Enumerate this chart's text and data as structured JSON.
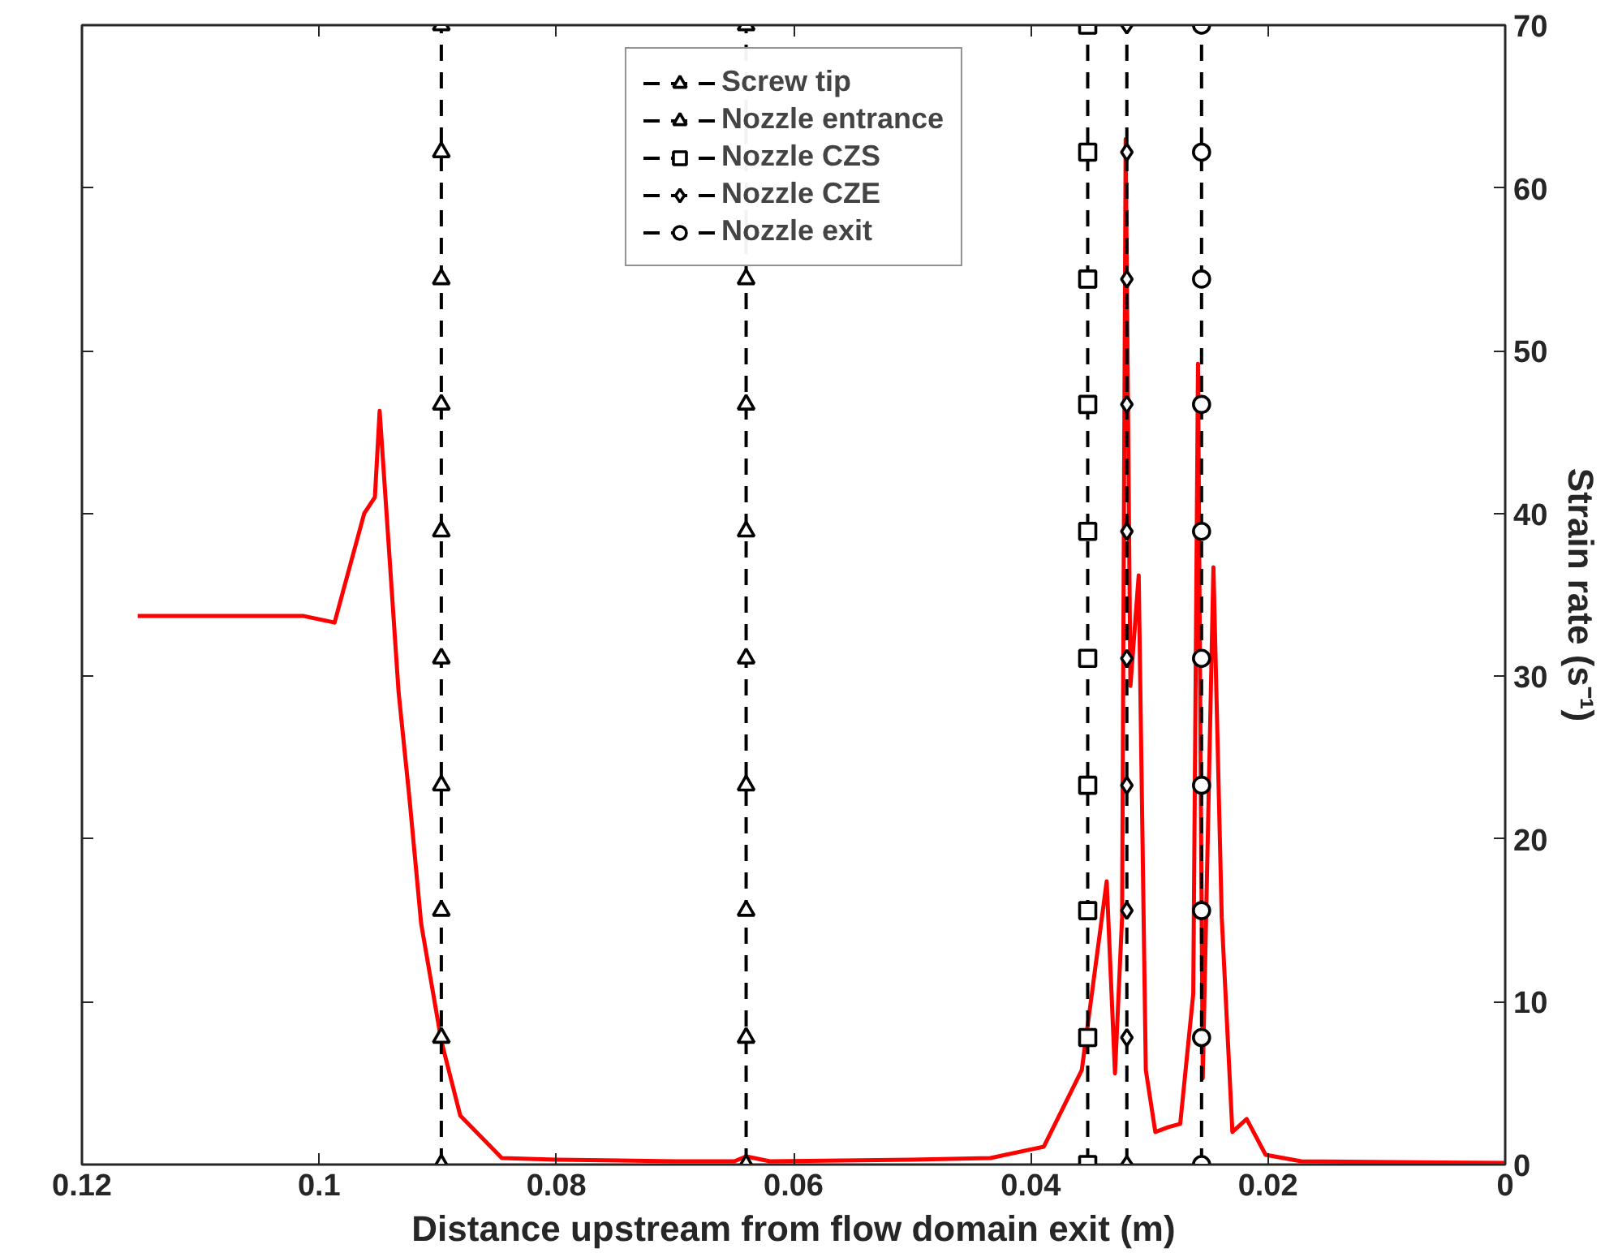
{
  "chart_data": {
    "type": "line",
    "xlabel": "Distance upstream from flow domain exit (m)",
    "ylabel": "Strain rate (s⁻¹)",
    "xlim": [
      0.12,
      0
    ],
    "xticks": [
      0.12,
      0.1,
      0.08,
      0.06,
      0.04,
      0.02,
      0
    ],
    "ylim": [
      0,
      70
    ],
    "yticks": [
      0,
      10,
      20,
      30,
      40,
      50,
      60,
      70
    ],
    "grid": false,
    "legend": "top",
    "series": [
      {
        "color": "#ff0000",
        "line_style": "solid",
        "marker": "none",
        "x": [
          0.1153,
          0.1013,
          0.0987,
          0.0962,
          0.0953,
          0.0949,
          0.0933,
          0.0924,
          0.0914,
          0.0897,
          0.0881,
          0.0846,
          0.08,
          0.07,
          0.065,
          0.064,
          0.062,
          0.05,
          0.0434,
          0.0389,
          0.0357,
          0.0336,
          0.0329,
          0.0323,
          0.032,
          0.0316,
          0.0309,
          0.0303,
          0.0295,
          0.0284,
          0.0274,
          0.0263,
          0.0259,
          0.0255,
          0.0246,
          0.0239,
          0.023,
          0.0218,
          0.0202,
          0.0172,
          0
        ],
        "values": [
          33.7,
          33.7,
          33.3,
          40.0,
          41.0,
          46.3,
          29.0,
          22.6,
          14.8,
          7.6,
          3.0,
          0.4,
          0.3,
          0.2,
          0.2,
          0.5,
          0.2,
          0.3,
          0.4,
          1.1,
          5.8,
          17.4,
          5.6,
          15.2,
          63,
          29.4,
          36.2,
          5.8,
          2.0,
          2.3,
          2.5,
          10.5,
          49.2,
          5.3,
          36.7,
          15.2,
          2.0,
          2.8,
          0.6,
          0.2,
          0.1
        ]
      },
      {
        "name": "Screw tip",
        "color": "#000000",
        "line_style": "dashed",
        "marker": "triangle",
        "x": [
          0.0897,
          0.0897,
          0.0897,
          0.0897,
          0.0897,
          0.0897,
          0.0897,
          0.0897,
          0.0897,
          0.0897
        ],
        "values": [
          0,
          7.8,
          15.6,
          23.3,
          31.1,
          38.9,
          46.7,
          54.4,
          62.2,
          70
        ]
      },
      {
        "name": "Nozzle entrance",
        "color": "#000000",
        "line_style": "dashed",
        "marker": "triangle",
        "x": [
          0.064,
          0.064,
          0.064,
          0.064,
          0.064,
          0.064,
          0.064,
          0.064,
          0.064
        ],
        "values": [
          0,
          7.8,
          15.6,
          23.3,
          31.1,
          38.9,
          46.7,
          54.4,
          70
        ]
      },
      {
        "name": "Nozzle CZS",
        "color": "#000000",
        "line_style": "dashed",
        "marker": "square",
        "x": [
          0.0352,
          0.0352,
          0.0352,
          0.0352,
          0.0352,
          0.0352,
          0.0352,
          0.0352,
          0.0352,
          0.0352
        ],
        "values": [
          0,
          7.8,
          15.6,
          23.3,
          31.1,
          38.9,
          46.7,
          54.4,
          62.2,
          70
        ]
      },
      {
        "name": "Nozzle CZE",
        "color": "#000000",
        "line_style": "dashed",
        "marker": "diamond",
        "x": [
          0.0319,
          0.0319,
          0.0319,
          0.0319,
          0.0319,
          0.0319,
          0.0319,
          0.0319,
          0.0319,
          0.0319
        ],
        "values": [
          0,
          7.8,
          15.6,
          23.3,
          31.1,
          38.9,
          46.7,
          54.4,
          62.2,
          70
        ]
      },
      {
        "name": "Nozzle exit",
        "color": "#000000",
        "line_style": "dashed",
        "marker": "circle",
        "x": [
          0.0256,
          0.0256,
          0.0256,
          0.0256,
          0.0256,
          0.0256,
          0.0256,
          0.0256,
          0.0256,
          0.0256
        ],
        "values": [
          0,
          7.8,
          15.6,
          23.3,
          31.1,
          38.9,
          46.7,
          54.4,
          62.2,
          70
        ]
      }
    ]
  }
}
